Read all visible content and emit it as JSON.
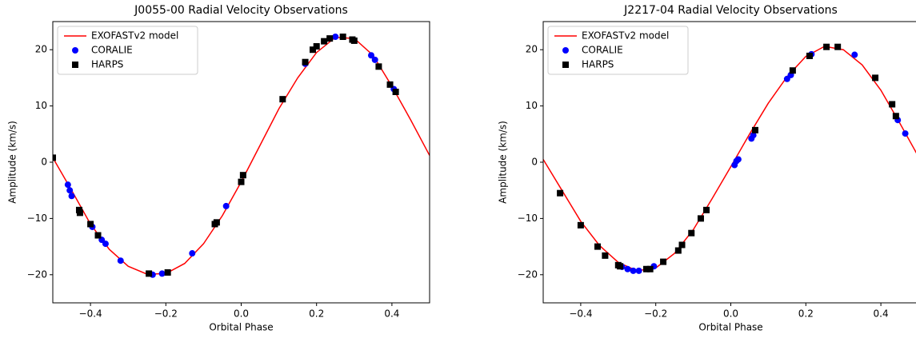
{
  "chart_data": [
    {
      "type": "scatter",
      "title": "J0055-00 Radial Velocity Observations",
      "xlabel": "Orbital Phase",
      "ylabel": "Amplitude (km/s)",
      "xlim": [
        -0.5,
        0.5
      ],
      "ylim": [
        -25,
        25
      ],
      "xticks": [
        {
          "value": -0.4,
          "label": "−0.4"
        },
        {
          "value": -0.2,
          "label": "−0.2"
        },
        {
          "value": 0,
          "label": "0.0"
        },
        0.2,
        0.4
      ],
      "yticks": [
        {
          "value": -20,
          "label": "−20"
        },
        {
          "value": -10,
          "label": "−10"
        },
        0,
        10,
        20
      ],
      "legend": "upper left",
      "grid": false,
      "series": [
        {
          "name": "EXOFASTv2 model",
          "color": "#ff0000",
          "linestyle": "-",
          "x": [
            -0.5,
            -0.45,
            -0.4,
            -0.35,
            -0.3,
            -0.25,
            -0.2,
            -0.15,
            -0.1,
            -0.05,
            0,
            0.05,
            0.1,
            0.15,
            0.2,
            0.25,
            0.3,
            0.35,
            0.4,
            0.45,
            0.5
          ],
          "values": [
            0.8,
            -5,
            -11,
            -15.5,
            -18.5,
            -19.9,
            -19.8,
            -18,
            -14.5,
            -9.5,
            -3.5,
            3,
            9.5,
            15,
            19.5,
            22.2,
            22,
            19,
            13.5,
            7.5,
            1.2
          ]
        },
        {
          "name": "CORALIE",
          "color": "#0000ff",
          "marker": "o",
          "x": [
            -0.46,
            -0.455,
            -0.45,
            -0.395,
            -0.37,
            -0.36,
            -0.32,
            -0.235,
            -0.21,
            -0.13,
            -0.04,
            0.17,
            0.25,
            0.345,
            0.355,
            0.405,
            0.41
          ],
          "values": [
            -4,
            -5,
            -6,
            -11.5,
            -13.8,
            -14.5,
            -17.5,
            -20,
            -19.8,
            -16.2,
            -7.8,
            17.5,
            22.3,
            19,
            18.2,
            13,
            12.5
          ]
        },
        {
          "name": "HARPS",
          "color": "#000000",
          "marker": "s",
          "x": [
            -0.5,
            -0.43,
            -0.428,
            -0.4,
            -0.38,
            -0.245,
            -0.195,
            -0.07,
            -0.065,
            0,
            0.005,
            0.11,
            0.17,
            0.19,
            0.2,
            0.22,
            0.235,
            0.27,
            0.295,
            0.3,
            0.365,
            0.395,
            0.41
          ],
          "values": [
            0.8,
            -8.5,
            -9,
            -11,
            -13,
            -19.8,
            -19.6,
            -11,
            -10.7,
            -3.5,
            -2.3,
            11.2,
            17.8,
            20,
            20.6,
            21.5,
            22,
            22.3,
            21.8,
            21.6,
            17,
            13.8,
            12.5
          ]
        }
      ]
    },
    {
      "type": "scatter",
      "title": "J2217-04 Radial Velocity Observations",
      "xlabel": "Orbital Phase",
      "ylabel": "Amplitude (km/s)",
      "xlim": [
        -0.5,
        0.5
      ],
      "ylim": [
        -25,
        25
      ],
      "xticks": [
        {
          "value": -0.4,
          "label": "−0.4"
        },
        {
          "value": -0.2,
          "label": "−0.2"
        },
        {
          "value": 0,
          "label": "0.0"
        },
        0.2,
        0.4
      ],
      "yticks": [
        {
          "value": -20,
          "label": "−20"
        },
        {
          "value": -10,
          "label": "−10"
        },
        0,
        10,
        20
      ],
      "legend": "upper left",
      "grid": false,
      "series": [
        {
          "name": "EXOFASTv2 model",
          "color": "#ff0000",
          "linestyle": "-",
          "x": [
            -0.5,
            -0.45,
            -0.4,
            -0.35,
            -0.3,
            -0.25,
            -0.2,
            -0.15,
            -0.1,
            -0.05,
            0,
            0.05,
            0.1,
            0.15,
            0.2,
            0.25,
            0.3,
            0.35,
            0.4,
            0.45,
            0.5
          ],
          "values": [
            0.5,
            -5,
            -10.5,
            -14.8,
            -17.8,
            -19.3,
            -18.8,
            -16.2,
            -12,
            -6.5,
            -0.8,
            5,
            10.5,
            15.2,
            18.8,
            20.6,
            20,
            17.3,
            12.8,
            7,
            1
          ]
        },
        {
          "name": "CORALIE",
          "color": "#0000ff",
          "marker": "o",
          "x": [
            -0.29,
            -0.275,
            -0.26,
            -0.245,
            -0.205,
            0.01,
            0.015,
            0.02,
            0.055,
            0.06,
            0.15,
            0.16,
            0.215,
            0.33,
            0.445,
            0.465
          ],
          "values": [
            -18.6,
            -19,
            -19.3,
            -19.3,
            -18.5,
            -0.5,
            0.2,
            0.5,
            4.2,
            4.8,
            14.8,
            15.5,
            19.2,
            19.1,
            7.5,
            5.1
          ]
        },
        {
          "name": "HARPS",
          "color": "#000000",
          "marker": "s",
          "x": [
            -0.455,
            -0.4,
            -0.355,
            -0.335,
            -0.3,
            -0.295,
            -0.225,
            -0.215,
            -0.18,
            -0.14,
            -0.13,
            -0.105,
            -0.08,
            -0.065,
            0.065,
            0.165,
            0.21,
            0.255,
            0.285,
            0.385,
            0.43,
            0.44
          ],
          "values": [
            -5.5,
            -11.2,
            -15,
            -16.6,
            -18.3,
            -18.5,
            -19,
            -19,
            -17.7,
            -15.7,
            -14.7,
            -12.6,
            -10,
            -8.5,
            5.7,
            16.3,
            18.9,
            20.5,
            20.5,
            15,
            10.3,
            8.2
          ]
        }
      ]
    }
  ]
}
